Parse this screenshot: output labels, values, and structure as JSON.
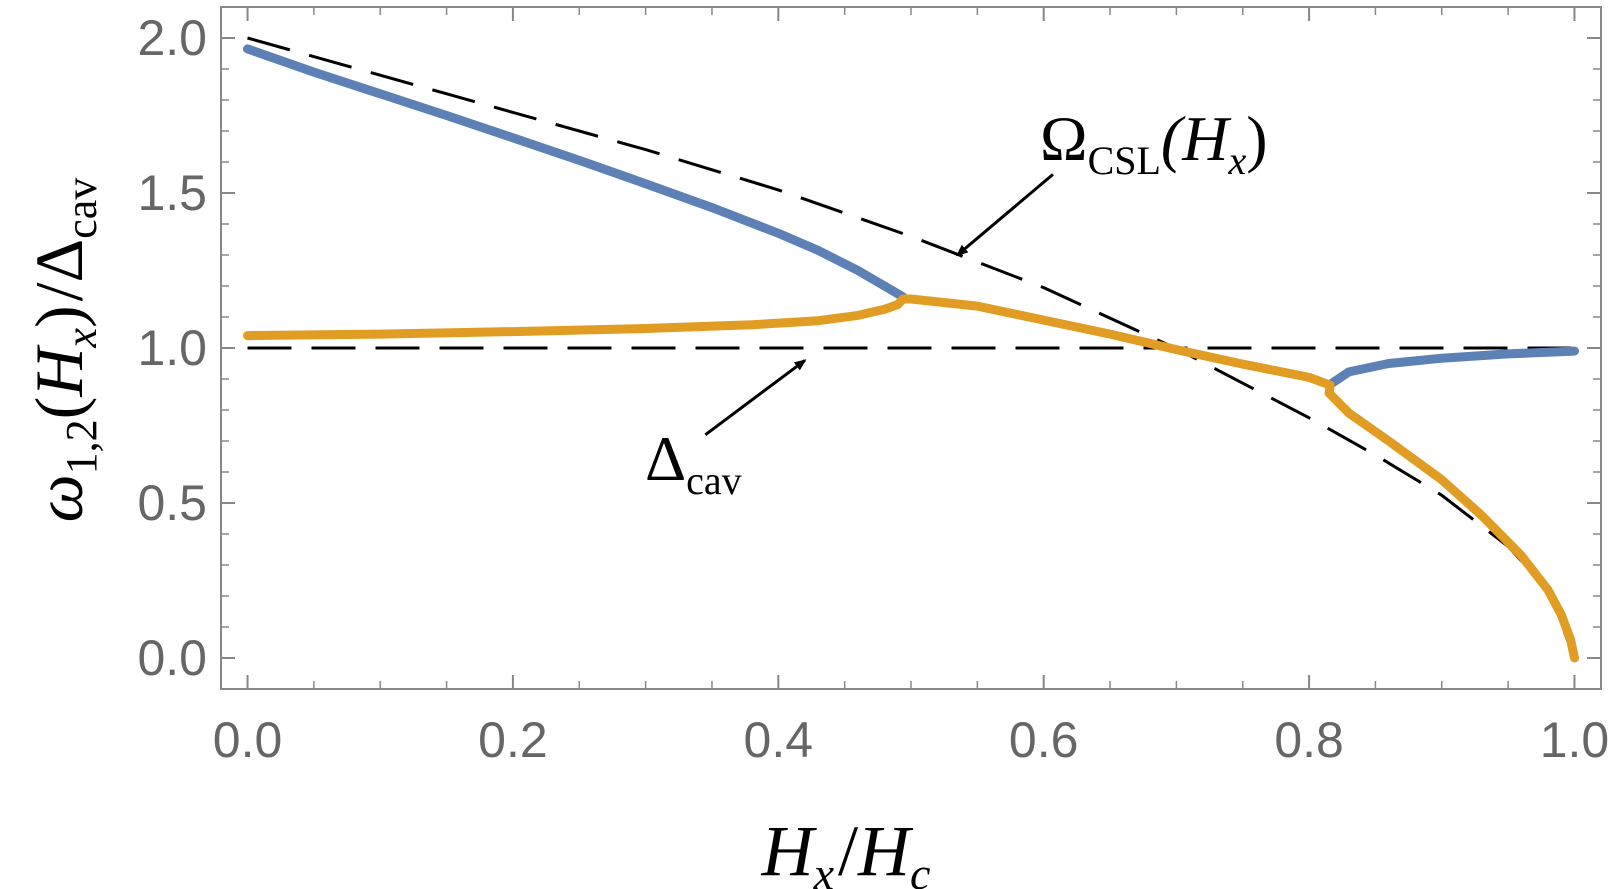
{
  "chart_data": {
    "type": "line",
    "xlabel": {
      "main": "H",
      "main_sub": "x",
      "slash": "/",
      "den": "H",
      "den_sub": "c"
    },
    "ylabel": {
      "omega": "ω",
      "omega_sub": "1,2",
      "open": "(",
      "H": "H",
      "H_sub": "x",
      "close": ")",
      "slash": "/",
      "delta": "Δ",
      "delta_sub": "cav"
    },
    "xlim": [
      -0.02,
      1.02
    ],
    "ylim": [
      -0.1,
      2.1
    ],
    "x_ticks": [
      "0.0",
      "0.2",
      "0.4",
      "0.6",
      "0.8",
      "1.0"
    ],
    "x_tick_values": [
      0.0,
      0.2,
      0.4,
      0.6,
      0.8,
      1.0
    ],
    "y_ticks": [
      "0.0",
      "0.5",
      "1.0",
      "1.5",
      "2.0"
    ],
    "y_tick_values": [
      0.0,
      0.5,
      1.0,
      1.5,
      2.0
    ],
    "series": [
      {
        "color": "#5E81B5",
        "style": "solid",
        "points": [
          [
            0.0,
            1.965
          ],
          [
            0.05,
            1.89
          ],
          [
            0.1,
            1.82
          ],
          [
            0.15,
            1.75
          ],
          [
            0.2,
            1.678
          ],
          [
            0.25,
            1.605
          ],
          [
            0.3,
            1.53
          ],
          [
            0.35,
            1.453
          ],
          [
            0.4,
            1.37
          ],
          [
            0.43,
            1.315
          ],
          [
            0.46,
            1.25
          ],
          [
            0.48,
            1.2
          ],
          [
            0.494,
            1.165
          ]
        ]
      },
      {
        "color": "#E19C24",
        "style": "solid",
        "points": [
          [
            0.0,
            1.04
          ],
          [
            0.1,
            1.045
          ],
          [
            0.2,
            1.053
          ],
          [
            0.3,
            1.063
          ],
          [
            0.38,
            1.075
          ],
          [
            0.43,
            1.088
          ],
          [
            0.46,
            1.105
          ],
          [
            0.48,
            1.125
          ],
          [
            0.49,
            1.14
          ],
          [
            0.494,
            1.158
          ],
          [
            0.5,
            1.158
          ],
          [
            0.55,
            1.135
          ],
          [
            0.6,
            1.09
          ],
          [
            0.65,
            1.045
          ],
          [
            0.7,
            0.995
          ],
          [
            0.75,
            0.948
          ],
          [
            0.8,
            0.905
          ],
          [
            0.816,
            0.88
          ],
          [
            0.815,
            0.855
          ],
          [
            0.83,
            0.79
          ],
          [
            0.86,
            0.7
          ],
          [
            0.9,
            0.575
          ],
          [
            0.93,
            0.46
          ],
          [
            0.96,
            0.33
          ],
          [
            0.98,
            0.22
          ],
          [
            0.99,
            0.14
          ],
          [
            0.997,
            0.06
          ],
          [
            1.0,
            0.0
          ]
        ]
      },
      {
        "color": "#5E81B5",
        "style": "solid",
        "points": [
          [
            0.815,
            0.88
          ],
          [
            0.83,
            0.923
          ],
          [
            0.86,
            0.95
          ],
          [
            0.9,
            0.967
          ],
          [
            0.95,
            0.981
          ],
          [
            1.0,
            0.99
          ]
        ]
      },
      {
        "color": "#000000",
        "style": "dashed",
        "points": [
          [
            0.0,
            1.0
          ],
          [
            1.0,
            1.0
          ]
        ]
      },
      {
        "color": "#000000",
        "style": "dashed",
        "points": [
          [
            0.0,
            2.0
          ],
          [
            0.1,
            1.88
          ],
          [
            0.2,
            1.76
          ],
          [
            0.3,
            1.64
          ],
          [
            0.4,
            1.51
          ],
          [
            0.5,
            1.36
          ],
          [
            0.6,
            1.195
          ],
          [
            0.7,
            0.998
          ],
          [
            0.8,
            0.775
          ],
          [
            0.85,
            0.655
          ],
          [
            0.9,
            0.525
          ],
          [
            0.95,
            0.36
          ],
          [
            0.98,
            0.22
          ],
          [
            1.0,
            0.0
          ]
        ]
      }
    ],
    "annotations": [
      {
        "text_main": "Ω",
        "text_sub": "CSL",
        "text_args": "(H",
        "text_args_sub": "x",
        "text_close": ")",
        "arrow_from": [
          0.607,
          1.56
        ],
        "arrow_to": [
          0.535,
          1.3
        ]
      },
      {
        "text_main": "Δ",
        "text_sub": "cav",
        "arrow_from": [
          0.345,
          0.72
        ],
        "arrow_to": [
          0.42,
          0.96
        ]
      }
    ]
  }
}
